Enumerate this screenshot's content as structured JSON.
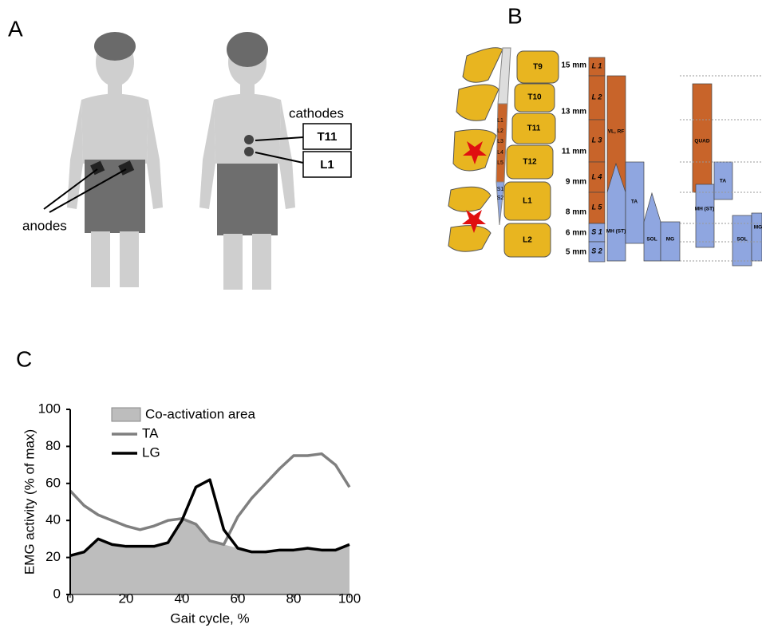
{
  "panel_a": {
    "label": "A",
    "cathodes_label": "cathodes",
    "cathodes": [
      "T11",
      "L1"
    ],
    "anodes_label": "anodes"
  },
  "panel_b": {
    "label": "B",
    "vertebrae": [
      "T9",
      "T10",
      "T11",
      "T12",
      "L1",
      "L2"
    ],
    "cord_segments": [
      "L1",
      "L2",
      "L3",
      "L4",
      "L5",
      "S1",
      "S2"
    ],
    "depths": [
      "15 mm",
      "13 mm",
      "11 mm",
      "9 mm",
      "8 mm",
      "6 mm",
      "5 mm"
    ],
    "segments": [
      "L 1",
      "L 2",
      "L 3",
      "L 4",
      "L 5",
      "S 1",
      "S 2"
    ],
    "muscles_left": [
      "VL, RF",
      "MH (ST)",
      "TA",
      "SOL",
      "MG"
    ],
    "muscles_right": [
      "QUAD",
      "MH (ST)",
      "TA",
      "SOL",
      "MG"
    ]
  },
  "panel_c_label": "C",
  "chart_data": {
    "type": "line",
    "xlabel": "Gait cycle, %",
    "ylabel": "EMG activity (% of max)",
    "x": [
      0,
      5,
      10,
      15,
      20,
      25,
      30,
      35,
      40,
      45,
      50,
      55,
      60,
      65,
      70,
      75,
      80,
      85,
      90,
      95,
      100
    ],
    "series": [
      {
        "name": "Co-activation area",
        "type": "area",
        "color": "#bdbdbd",
        "values": [
          21,
          23,
          30,
          27,
          26,
          26,
          26,
          28,
          40,
          38,
          29,
          27,
          25,
          23,
          23,
          24,
          24,
          25,
          24,
          24,
          27
        ]
      },
      {
        "name": "TA",
        "color": "#7f7f7f",
        "values": [
          56,
          48,
          43,
          40,
          37,
          35,
          37,
          40,
          41,
          38,
          29,
          27,
          42,
          52,
          60,
          68,
          75,
          75,
          76,
          70,
          58
        ]
      },
      {
        "name": "LG",
        "color": "#000000",
        "values": [
          21,
          23,
          30,
          27,
          26,
          26,
          26,
          28,
          40,
          58,
          62,
          35,
          25,
          23,
          23,
          24,
          24,
          25,
          24,
          24,
          27
        ]
      }
    ],
    "xlim": [
      0,
      100
    ],
    "ylim": [
      0,
      100
    ],
    "xticks": [
      0,
      20,
      40,
      60,
      80,
      100
    ],
    "yticks": [
      0,
      20,
      40,
      60,
      80,
      100
    ]
  }
}
